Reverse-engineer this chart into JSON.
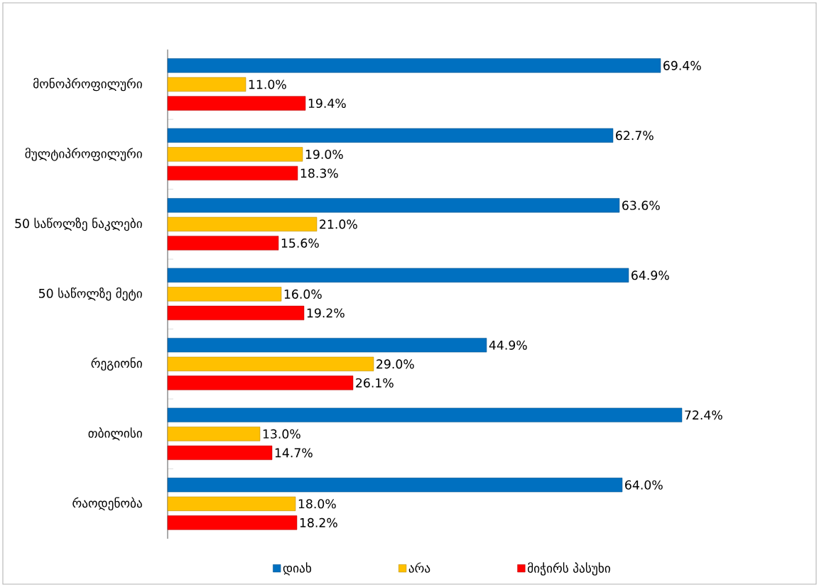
{
  "chart_data": {
    "type": "bar",
    "orientation": "horizontal",
    "categories": [
      "მონოპროფილური",
      "მულტიპროფილური",
      "50 საწოლზე ნაკლები",
      "50 საწოლზე მეტი",
      "რეგიონი",
      "თბილისი",
      "რაოდენობა"
    ],
    "series": [
      {
        "name": "დიახ",
        "color": "#0070c0",
        "values": [
          69.4,
          62.7,
          63.6,
          64.9,
          44.9,
          72.4,
          64.0
        ],
        "value_labels": [
          "69.4%",
          "62.7%",
          "63.6%",
          "64.9%",
          "44.9%",
          "72.4%",
          "64.0%"
        ]
      },
      {
        "name": "არა",
        "color": "#ffc000",
        "values": [
          11.0,
          19.0,
          21.0,
          16.0,
          29.0,
          13.0,
          18.0
        ],
        "value_labels": [
          "11.0%",
          "19.0%",
          "21.0%",
          "16.0%",
          "29.0%",
          "13.0%",
          "18.0%"
        ]
      },
      {
        "name": "მიჭირს პასუხი",
        "color": "#ff0000",
        "values": [
          19.4,
          18.3,
          15.6,
          19.2,
          26.1,
          14.7,
          18.2
        ],
        "value_labels": [
          "19.4%",
          "18.3%",
          "15.6%",
          "19.2%",
          "26.1%",
          "14.7%",
          "18.2%"
        ]
      }
    ],
    "legend": "bottom"
  }
}
